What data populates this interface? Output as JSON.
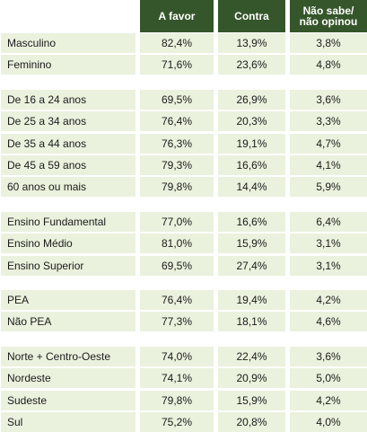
{
  "table": {
    "headers": [
      "",
      "A favor",
      "Contra",
      "Não sabe/\nnão opinou"
    ],
    "groups": [
      {
        "rows": [
          {
            "label": "Masculino",
            "a_favor": "82,4%",
            "contra": "13,9%",
            "nao_sabe": "3,8%"
          },
          {
            "label": "Feminino",
            "a_favor": "71,6%",
            "contra": "23,6%",
            "nao_sabe": "4,8%"
          }
        ]
      },
      {
        "rows": [
          {
            "label": "De 16 a 24 anos",
            "a_favor": "69,5%",
            "contra": "26,9%",
            "nao_sabe": "3,6%"
          },
          {
            "label": "De 25 a 34 anos",
            "a_favor": "76,4%",
            "contra": "20,3%",
            "nao_sabe": "3,3%"
          },
          {
            "label": "De 35 a 44 anos",
            "a_favor": "76,3%",
            "contra": "19,1%",
            "nao_sabe": "4,7%"
          },
          {
            "label": "De 45 a 59 anos",
            "a_favor": "79,3%",
            "contra": "16,6%",
            "nao_sabe": "4,1%"
          },
          {
            "label": "60 anos ou mais",
            "a_favor": "79,8%",
            "contra": "14,4%",
            "nao_sabe": "5,9%"
          }
        ]
      },
      {
        "rows": [
          {
            "label": "Ensino Fundamental",
            "a_favor": "77,0%",
            "contra": "16,6%",
            "nao_sabe": "6,4%"
          },
          {
            "label": "Ensino Médio",
            "a_favor": "81,0%",
            "contra": "15,9%",
            "nao_sabe": "3,1%"
          },
          {
            "label": "Ensino Superior",
            "a_favor": "69,5%",
            "contra": "27,4%",
            "nao_sabe": "3,1%"
          }
        ]
      },
      {
        "rows": [
          {
            "label": "PEA",
            "a_favor": "76,4%",
            "contra": "19,4%",
            "nao_sabe": "4,2%"
          },
          {
            "label": "Não PEA",
            "a_favor": "77,3%",
            "contra": "18,1%",
            "nao_sabe": "4,6%"
          }
        ]
      },
      {
        "rows": [
          {
            "label": "Norte + Centro-Oeste",
            "a_favor": "74,0%",
            "contra": "22,4%",
            "nao_sabe": "3,6%"
          },
          {
            "label": "Nordeste",
            "a_favor": "74,1%",
            "contra": "20,9%",
            "nao_sabe": "5,0%"
          },
          {
            "label": "Sudeste",
            "a_favor": "79,8%",
            "contra": "15,9%",
            "nao_sabe": "4,2%"
          },
          {
            "label": "Sul",
            "a_favor": "75,2%",
            "contra": "20,8%",
            "nao_sabe": "4,0%"
          }
        ]
      }
    ]
  }
}
